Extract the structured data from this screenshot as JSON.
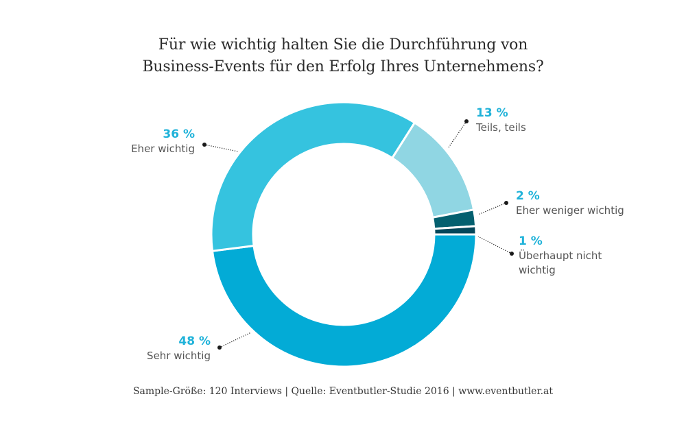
{
  "chart_data": {
    "type": "pie",
    "variant": "donut",
    "title": "Für wie wichtig halten Sie die Durchführung von Business-Events für den Erfolg Ihres Unternehmens?",
    "title_lines": [
      "Für wie wichtig halten Sie die Durchführung von",
      "Business-Events für den Erfolg Ihres Unternehmens?"
    ],
    "unit": "%",
    "start_direction": "right (3 o'clock), clockwise",
    "slices": [
      {
        "category": "Sehr wichtig",
        "value": 48,
        "label": "48 %",
        "color": "#03abd6"
      },
      {
        "category": "Eher wichtig",
        "value": 36,
        "label": "36 %",
        "color": "#35c3df"
      },
      {
        "category": "Teils, teils",
        "value": 13,
        "label": "13 %",
        "color": "#90d6e3"
      },
      {
        "category": "Eher weniger wichtig",
        "value": 2,
        "label": "2 %",
        "color": "#04606f"
      },
      {
        "category": "Überhaupt nicht wichtig",
        "value": 1,
        "label": "1 %",
        "color": "#04475a",
        "category_lines": [
          "Überhaupt nicht",
          "wichtig"
        ]
      }
    ],
    "label_color": "#1fb2d9",
    "footer": "Sample-Größe: 120 Interviews  |  Quelle: Eventbutler-Studie 2016  |  www.eventbutler.at"
  }
}
